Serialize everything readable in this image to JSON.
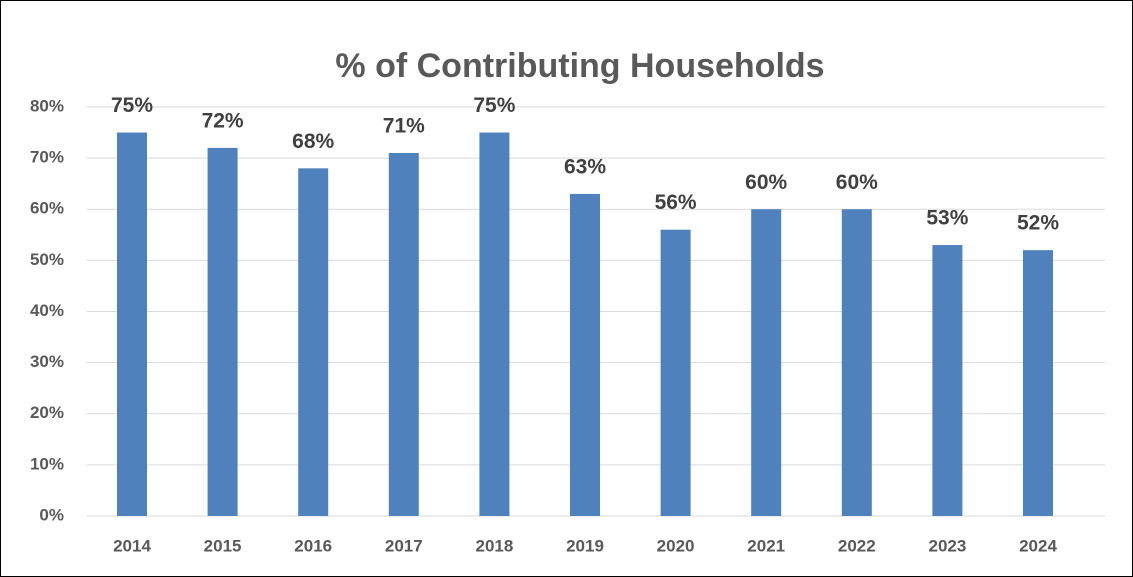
{
  "chart_data": {
    "type": "bar",
    "title": "% of Contributing Households",
    "categories": [
      "2014",
      "2015",
      "2016",
      "2017",
      "2018",
      "2019",
      "2020",
      "2021",
      "2022",
      "2023",
      "2024"
    ],
    "values": [
      75,
      72,
      68,
      71,
      75,
      63,
      56,
      60,
      60,
      53,
      52
    ],
    "value_labels": [
      "75%",
      "72%",
      "68%",
      "71%",
      "75%",
      "63%",
      "56%",
      "60%",
      "60%",
      "53%",
      "52%"
    ],
    "color": "#4f81bd",
    "ylim": [
      0,
      80
    ],
    "yticks": [
      {
        "value": 0,
        "label": "0%"
      },
      {
        "value": 10,
        "label": "10%"
      },
      {
        "value": 20,
        "label": "20%"
      },
      {
        "value": 30,
        "label": "30%"
      },
      {
        "value": 40,
        "label": "40%"
      },
      {
        "value": 50,
        "label": "50%"
      },
      {
        "value": 60,
        "label": "60%"
      },
      {
        "value": 70,
        "label": "70%"
      },
      {
        "value": 80,
        "label": "80%"
      }
    ],
    "grid": true
  }
}
